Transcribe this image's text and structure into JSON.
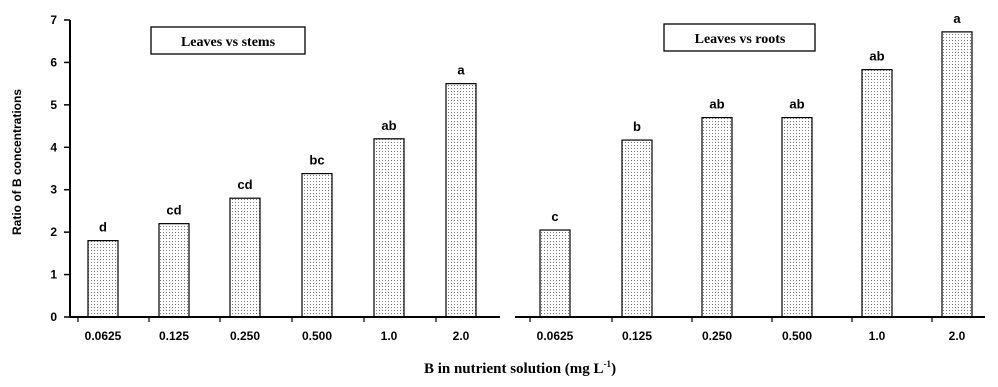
{
  "chart_data": [
    {
      "type": "bar",
      "title": "Leaves vs stems",
      "ylabel": "Ratio of B concentrations",
      "ylim": [
        0,
        7
      ],
      "yticks": [
        "0",
        "1",
        "2",
        "3",
        "4",
        "5",
        "6",
        "7"
      ],
      "categories": [
        "0.0625",
        "0.125",
        "0.250",
        "0.500",
        "1.0",
        "2.0"
      ],
      "values": [
        1.8,
        2.2,
        2.8,
        3.38,
        4.2,
        5.5
      ],
      "significance": [
        "d",
        "cd",
        "cd",
        "bc",
        "ab",
        "a"
      ]
    },
    {
      "type": "bar",
      "title": "Leaves vs roots",
      "ylim": [
        0,
        7
      ],
      "categories": [
        "0.0625",
        "0.125",
        "0.250",
        "0.500",
        "1.0",
        "2.0"
      ],
      "values": [
        2.05,
        4.17,
        4.7,
        4.7,
        5.83,
        6.72
      ],
      "significance": [
        "c",
        "b",
        "ab",
        "ab",
        "ab",
        "a"
      ]
    }
  ],
  "xlabel": {
    "main": "B in nutrient solution (mg L",
    "sup": "-1",
    "end": ")"
  }
}
